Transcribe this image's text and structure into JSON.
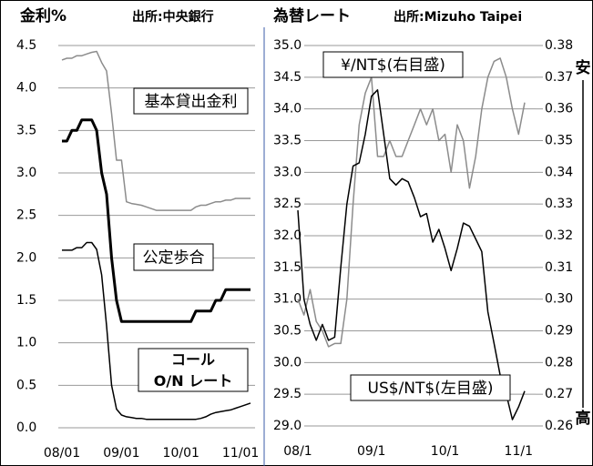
{
  "chart_data": [
    {
      "type": "line",
      "title": "金利%",
      "source": "出所:中央銀行",
      "categories": [
        "08/01",
        null,
        null,
        null,
        null,
        null,
        null,
        null,
        null,
        null,
        null,
        null,
        "09/01",
        null,
        null,
        null,
        null,
        null,
        null,
        null,
        null,
        null,
        null,
        null,
        "10/01",
        null,
        null,
        null,
        null,
        null,
        null,
        null,
        null,
        null,
        null,
        null,
        "11/01",
        null,
        null
      ],
      "ylim": [
        0,
        4.5
      ],
      "yticks": [
        {
          "value": 0,
          "label": "0.0"
        },
        0.5,
        {
          "value": 1,
          "label": "1.0"
        },
        1.5,
        {
          "value": 2,
          "label": "2.0"
        },
        2.5,
        {
          "value": 3,
          "label": "3.0"
        },
        3.5,
        {
          "value": 4,
          "label": "4.0"
        },
        4.5
      ],
      "grid": true,
      "series": [
        {
          "color": "#8c8c8c",
          "values": [
            4.33,
            4.35,
            4.35,
            4.38,
            4.38,
            4.4,
            4.42,
            4.43,
            4.3,
            4.2,
            3.7,
            3.15,
            3.15,
            2.66,
            2.64,
            2.63,
            2.62,
            2.6,
            2.58,
            2.56,
            2.56,
            2.56,
            2.56,
            2.56,
            2.56,
            2.56,
            2.56,
            2.6,
            2.62,
            2.62,
            2.64,
            2.66,
            2.66,
            2.68,
            2.68,
            2.7,
            2.7,
            2.7,
            2.7
          ]
        },
        {
          "color": "#000000",
          "values": [
            3.375,
            3.375,
            3.5,
            3.5,
            3.625,
            3.625,
            3.625,
            3.5,
            3.0,
            2.75,
            2.0,
            1.5,
            1.25,
            1.25,
            1.25,
            1.25,
            1.25,
            1.25,
            1.25,
            1.25,
            1.25,
            1.25,
            1.25,
            1.25,
            1.25,
            1.25,
            1.25,
            1.375,
            1.375,
            1.375,
            1.375,
            1.5,
            1.5,
            1.625,
            1.625,
            1.625,
            1.625,
            1.625,
            1.625
          ]
        },
        {
          "color": "#000000",
          "values": [
            2.09,
            2.09,
            2.09,
            2.12,
            2.12,
            2.18,
            2.18,
            2.1,
            1.8,
            1.2,
            0.5,
            0.22,
            0.15,
            0.13,
            0.12,
            0.11,
            0.11,
            0.1,
            0.1,
            0.1,
            0.1,
            0.1,
            0.1,
            0.1,
            0.1,
            0.1,
            0.1,
            0.1,
            0.11,
            0.13,
            0.16,
            0.18,
            0.19,
            0.2,
            0.21,
            0.23,
            0.25,
            0.27,
            0.29
          ]
        }
      ],
      "annotations": [
        {
          "lines": [
            "基本貸出金利"
          ]
        },
        {
          "lines": [
            "公定歩合"
          ]
        },
        {
          "lines": [
            "コール",
            "O/N レート"
          ]
        }
      ]
    },
    {
      "type": "line",
      "title": "為替レート",
      "source": "出所:Mizuho Taipei",
      "categories": [
        "08/1",
        null,
        null,
        null,
        null,
        null,
        null,
        null,
        null,
        null,
        null,
        null,
        "09/1",
        null,
        null,
        null,
        null,
        null,
        null,
        null,
        null,
        null,
        null,
        null,
        "10/1",
        null,
        null,
        null,
        null,
        null,
        null,
        null,
        null,
        null,
        null,
        null,
        "11/1",
        null
      ],
      "ylim": [
        29,
        35
      ],
      "yticks": [
        {
          "value": 29,
          "label": "29.0"
        },
        29.5,
        {
          "value": 30,
          "label": "30.0"
        },
        30.5,
        {
          "value": 31,
          "label": "31.0"
        },
        31.5,
        {
          "value": 32,
          "label": "32.0"
        },
        32.5,
        {
          "value": 33,
          "label": "33.0"
        },
        33.5,
        {
          "value": 34,
          "label": "34.0"
        },
        34.5,
        {
          "value": 35,
          "label": "35.0"
        }
      ],
      "y2lim": [
        0.26,
        0.38
      ],
      "y2ticks": [
        0.26,
        0.27,
        0.28,
        0.29,
        {
          "value": 0.3,
          "label": "0.30"
        },
        0.31,
        0.32,
        0.33,
        0.34,
        0.35,
        0.36,
        0.37,
        0.38
      ],
      "grid": true,
      "series": [
        {
          "color": "#8c8c8c",
          "axis": "y2",
          "values": [
            0.3,
            0.295,
            0.303,
            0.293,
            0.29,
            0.285,
            0.286,
            0.286,
            0.3,
            0.33,
            0.355,
            0.365,
            0.37,
            0.345,
            0.345,
            0.35,
            0.345,
            0.345,
            0.35,
            0.355,
            0.36,
            0.355,
            0.36,
            0.35,
            0.352,
            0.34,
            0.355,
            0.35,
            0.335,
            0.345,
            0.36,
            0.37,
            0.375,
            0.376,
            0.37,
            0.36,
            0.352,
            0.362
          ]
        },
        {
          "color": "#000000",
          "values": [
            32.4,
            31.0,
            30.6,
            30.35,
            30.6,
            30.35,
            30.4,
            31.5,
            32.5,
            33.1,
            33.15,
            33.6,
            34.2,
            34.3,
            33.6,
            32.9,
            32.8,
            32.9,
            32.85,
            32.6,
            32.3,
            32.35,
            31.9,
            32.1,
            31.8,
            31.45,
            31.8,
            32.2,
            32.15,
            31.95,
            31.75,
            30.8,
            30.3,
            29.8,
            29.5,
            29.1,
            29.3,
            29.55
          ]
        }
      ],
      "annotations": [
        {
          "lines": [
            "¥/NT$(右目盛)"
          ]
        },
        {
          "lines": [
            "US$/NT$(左目盛)"
          ]
        },
        {
          "lines": [
            "安"
          ]
        },
        {
          "lines": [
            "高"
          ]
        }
      ]
    }
  ]
}
